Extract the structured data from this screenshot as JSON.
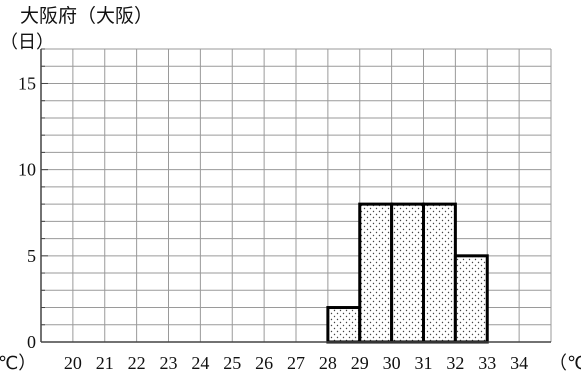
{
  "chart_data": {
    "type": "bar",
    "title": "大阪府（大阪）",
    "ylabel": "（日）",
    "xlabel": "（℃）",
    "x_axis_left_unit": "℃）",
    "categories": [
      "20",
      "21",
      "22",
      "23",
      "24",
      "25",
      "26",
      "27",
      "28",
      "29",
      "30",
      "31",
      "32",
      "33",
      "34"
    ],
    "bins": [
      {
        "from": 28,
        "to": 29,
        "value": 2
      },
      {
        "from": 29,
        "to": 30,
        "value": 8
      },
      {
        "from": 30,
        "to": 31,
        "value": 8
      },
      {
        "from": 31,
        "to": 32,
        "value": 8
      },
      {
        "from": 32,
        "to": 33,
        "value": 5
      }
    ],
    "yticks": [
      "0",
      "5",
      "10",
      "15"
    ],
    "xlim": [
      20,
      35
    ],
    "ylim": [
      0,
      17
    ],
    "grid": true,
    "fill_pattern": "dotted"
  }
}
